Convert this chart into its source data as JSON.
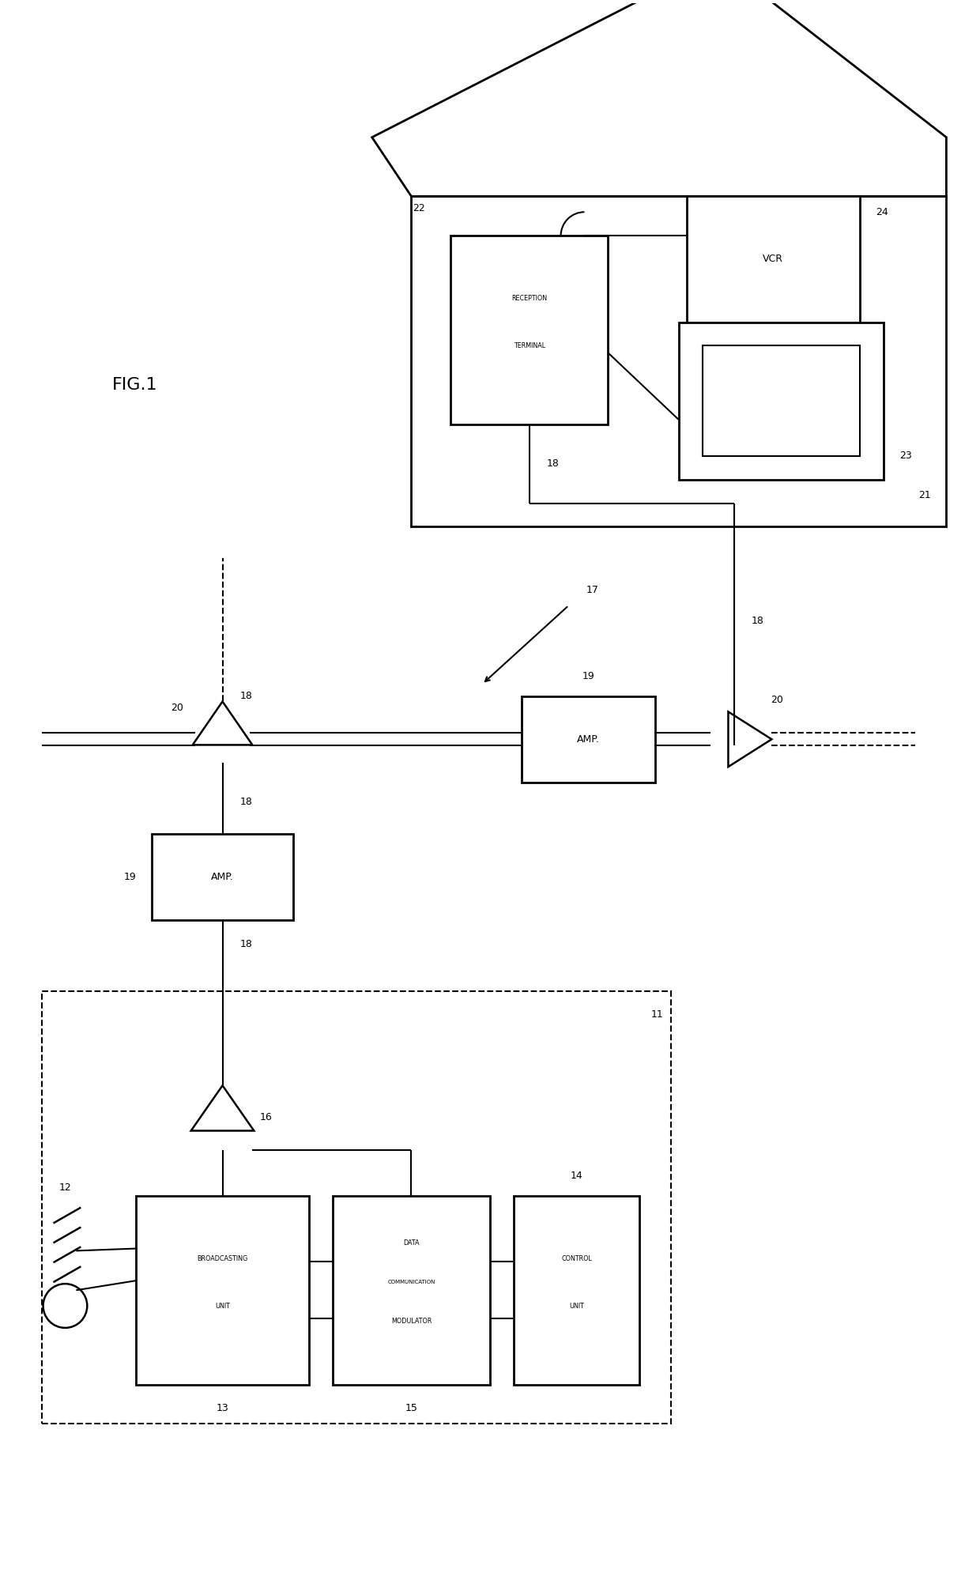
{
  "bg_color": "#ffffff",
  "line_color": "#000000",
  "fig_label": "FIG.1",
  "fig_width": 12.4,
  "fig_height": 19.85,
  "dpi": 100,
  "labels": {
    "11": "11",
    "12": "12",
    "13": "13",
    "14": "14",
    "15": "15",
    "16": "16",
    "17": "17",
    "18": "18",
    "19": "19",
    "20": "20",
    "21": "21",
    "22": "22",
    "23": "23",
    "24": "24"
  }
}
